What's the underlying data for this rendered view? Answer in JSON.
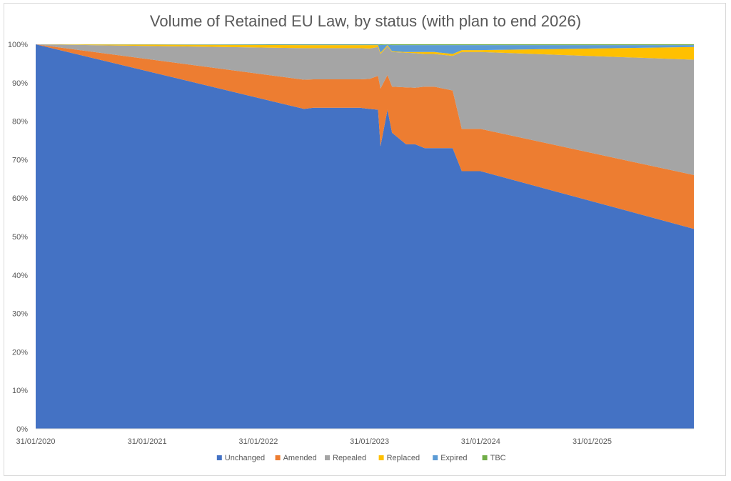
{
  "chart_data": {
    "type": "area",
    "stacked": true,
    "percent_stacked": true,
    "title": "Volume of Retained EU Law, by status (with plan to end 2026)",
    "xlabel": "",
    "ylabel": "",
    "ylim": [
      0,
      100
    ],
    "y_tick_labels": [
      "0%",
      "10%",
      "20%",
      "30%",
      "40%",
      "50%",
      "60%",
      "70%",
      "80%",
      "90%",
      "100%"
    ],
    "x_tick_labels": [
      "31/01/2020",
      "31/01/2021",
      "31/01/2022",
      "31/01/2023",
      "31/01/2024",
      "31/01/2025"
    ],
    "xlim": [
      "2020-01-31",
      "2025-12-31"
    ],
    "legend_position": "bottom",
    "grid": false,
    "x": [
      "2020-01-31",
      "2022-06-30",
      "2022-07-31",
      "2022-12-31",
      "2023-01-31",
      "2023-02-28",
      "2023-03-08",
      "2023-03-31",
      "2023-04-15",
      "2023-05-31",
      "2023-06-30",
      "2023-07-31",
      "2023-08-31",
      "2023-10-31",
      "2023-11-30",
      "2024-01-31",
      "2025-12-31"
    ],
    "series": [
      {
        "name": "Unchanged",
        "color": "#4472C4",
        "values": [
          100.0,
          83.2,
          83.5,
          83.5,
          83.2,
          83.0,
          73.5,
          83.0,
          77.0,
          74.0,
          74.0,
          73.0,
          73.0,
          73.0,
          67.0,
          67.0,
          52.0
        ]
      },
      {
        "name": "Amended",
        "color": "#ED7D31",
        "values": [
          0.0,
          7.6,
          7.4,
          7.4,
          7.8,
          8.8,
          15.0,
          9.0,
          12.0,
          14.8,
          14.7,
          16.0,
          16.0,
          15.0,
          11.0,
          11.0,
          14.0
        ]
      },
      {
        "name": "Repealed",
        "color": "#A5A5A5",
        "values": [
          0.0,
          8.2,
          8.1,
          8.1,
          7.9,
          7.5,
          9.0,
          7.5,
          9.0,
          9.0,
          9.0,
          8.5,
          8.5,
          9.0,
          20.0,
          20.0,
          30.0
        ]
      },
      {
        "name": "Replaced",
        "color": "#FFC000",
        "values": [
          0.0,
          0.8,
          0.8,
          0.8,
          0.9,
          0.5,
          0.3,
          0.3,
          0.2,
          0.2,
          0.3,
          0.5,
          0.5,
          0.5,
          0.5,
          0.5,
          3.3
        ]
      },
      {
        "name": "Expired",
        "color": "#5B9BD5",
        "values": [
          0.0,
          0.1,
          0.1,
          0.1,
          0.1,
          0.1,
          2.0,
          0.1,
          1.6,
          1.8,
          1.8,
          1.8,
          1.8,
          2.3,
          1.3,
          1.3,
          0.5
        ]
      },
      {
        "name": "TBC",
        "color": "#70AD47",
        "values": [
          0.0,
          0.1,
          0.1,
          0.1,
          0.1,
          0.1,
          0.2,
          0.1,
          0.2,
          0.2,
          0.2,
          0.2,
          0.2,
          0.2,
          0.2,
          0.2,
          0.2
        ]
      }
    ]
  }
}
